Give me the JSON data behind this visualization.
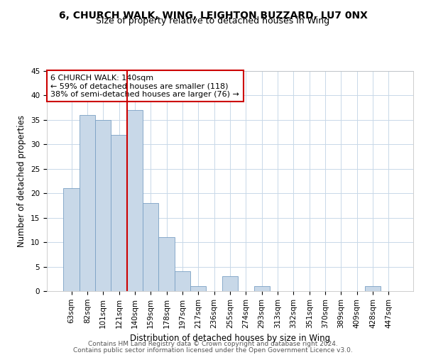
{
  "title": "6, CHURCH WALK, WING, LEIGHTON BUZZARD, LU7 0NX",
  "subtitle": "Size of property relative to detached houses in Wing",
  "xlabel": "Distribution of detached houses by size in Wing",
  "ylabel": "Number of detached properties",
  "bar_labels": [
    "63sqm",
    "82sqm",
    "101sqm",
    "121sqm",
    "140sqm",
    "159sqm",
    "178sqm",
    "197sqm",
    "217sqm",
    "236sqm",
    "255sqm",
    "274sqm",
    "293sqm",
    "313sqm",
    "332sqm",
    "351sqm",
    "370sqm",
    "389sqm",
    "409sqm",
    "428sqm",
    "447sqm"
  ],
  "bar_values": [
    21,
    36,
    35,
    32,
    37,
    18,
    11,
    4,
    1,
    0,
    3,
    0,
    1,
    0,
    0,
    0,
    0,
    0,
    0,
    1,
    0
  ],
  "bar_color": "#c8d8e8",
  "bar_edgecolor": "#7aa0c4",
  "bar_linewidth": 0.6,
  "vline_color": "#cc0000",
  "vline_index": 4,
  "ylim": [
    0,
    45
  ],
  "yticks": [
    0,
    5,
    10,
    15,
    20,
    25,
    30,
    35,
    40,
    45
  ],
  "annotation_text": "6 CHURCH WALK: 140sqm\n← 59% of detached houses are smaller (118)\n38% of semi-detached houses are larger (76) →",
  "annotation_box_color": "#ffffff",
  "annotation_box_edgecolor": "#cc0000",
  "footer_line1": "Contains HM Land Registry data © Crown copyright and database right 2024.",
  "footer_line2": "Contains public sector information licensed under the Open Government Licence v3.0.",
  "background_color": "#ffffff",
  "grid_color": "#c8d8e8",
  "title_fontsize": 10,
  "subtitle_fontsize": 9,
  "axis_label_fontsize": 8.5,
  "tick_fontsize": 7.5,
  "annotation_fontsize": 8,
  "footer_fontsize": 6.5
}
